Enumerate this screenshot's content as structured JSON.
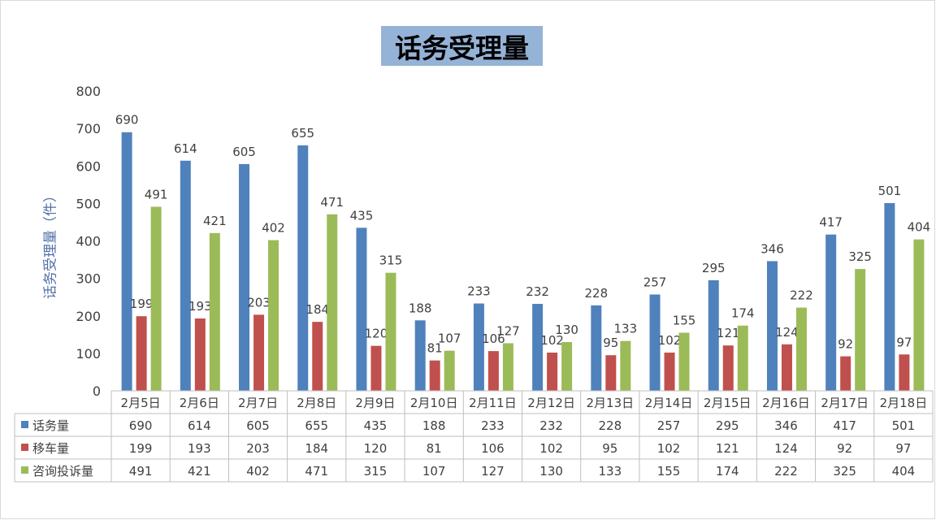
{
  "chart_data": {
    "type": "bar",
    "title": "话务受理量",
    "xlabel": "",
    "ylabel": "话务受理量（件）",
    "ylim": [
      0,
      800
    ],
    "yticks": [
      0,
      100,
      200,
      300,
      400,
      500,
      600,
      700,
      800
    ],
    "grid": false,
    "legend": "data-table-left",
    "categories": [
      "2月5日",
      "2月6日",
      "2月7日",
      "2月8日",
      "2月9日",
      "2月10日",
      "2月11日",
      "2月12日",
      "2月13日",
      "2月14日",
      "2月15日",
      "2月16日",
      "2月17日",
      "2月18日"
    ],
    "series": [
      {
        "name": "话务量",
        "color": "#4f81bd",
        "values": [
          690,
          614,
          605,
          655,
          435,
          188,
          233,
          232,
          228,
          257,
          295,
          346,
          417,
          501
        ]
      },
      {
        "name": "移车量",
        "color": "#c0504d",
        "values": [
          199,
          193,
          203,
          184,
          120,
          81,
          106,
          102,
          95,
          102,
          121,
          124,
          92,
          97
        ]
      },
      {
        "name": "咨询投诉量",
        "color": "#9bbb59",
        "values": [
          491,
          421,
          402,
          471,
          315,
          107,
          127,
          130,
          133,
          155,
          174,
          222,
          325,
          404
        ]
      }
    ]
  }
}
